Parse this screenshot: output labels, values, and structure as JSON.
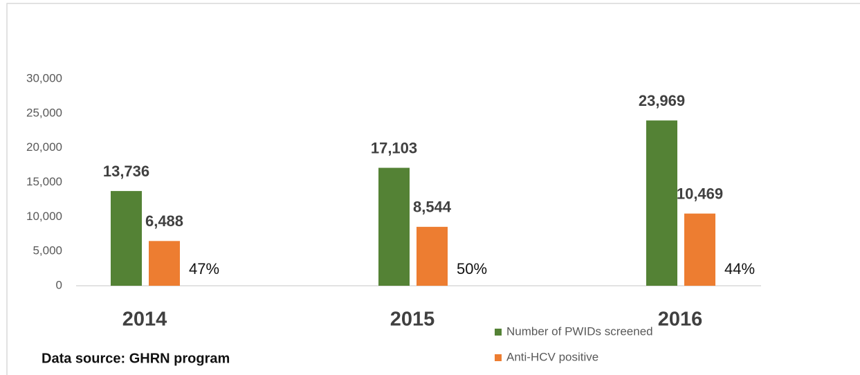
{
  "chart_data": {
    "type": "bar",
    "categories": [
      "2014",
      "2015",
      "2016"
    ],
    "series": [
      {
        "name": "Number of PWIDs screened",
        "color": "#548235",
        "values": [
          13736,
          17103,
          23969
        ],
        "value_labels": [
          "13,736",
          "17,103",
          "23,969"
        ]
      },
      {
        "name": "Anti-HCV positive",
        "color": "#ed7d31",
        "values": [
          6488,
          8544,
          10469
        ],
        "value_labels": [
          "6,488",
          "8,544",
          "10,469"
        ]
      }
    ],
    "annotations": {
      "values": [
        47,
        50,
        44
      ],
      "value_labels": [
        "47%",
        "50%",
        "44%"
      ]
    },
    "ylim": [
      0,
      30000
    ],
    "yticks": [
      0,
      {
        "value": 5000,
        "label": "5,000"
      },
      {
        "value": 10000,
        "label": "10,000"
      },
      {
        "value": 15000,
        "label": "15,000"
      },
      {
        "value": 20000,
        "label": "20,000"
      },
      {
        "value": 25000,
        "label": "25,000"
      },
      {
        "value": 30000,
        "label": "30,000"
      }
    ],
    "grid": false,
    "footnote": "Data source:  GHRN program"
  }
}
